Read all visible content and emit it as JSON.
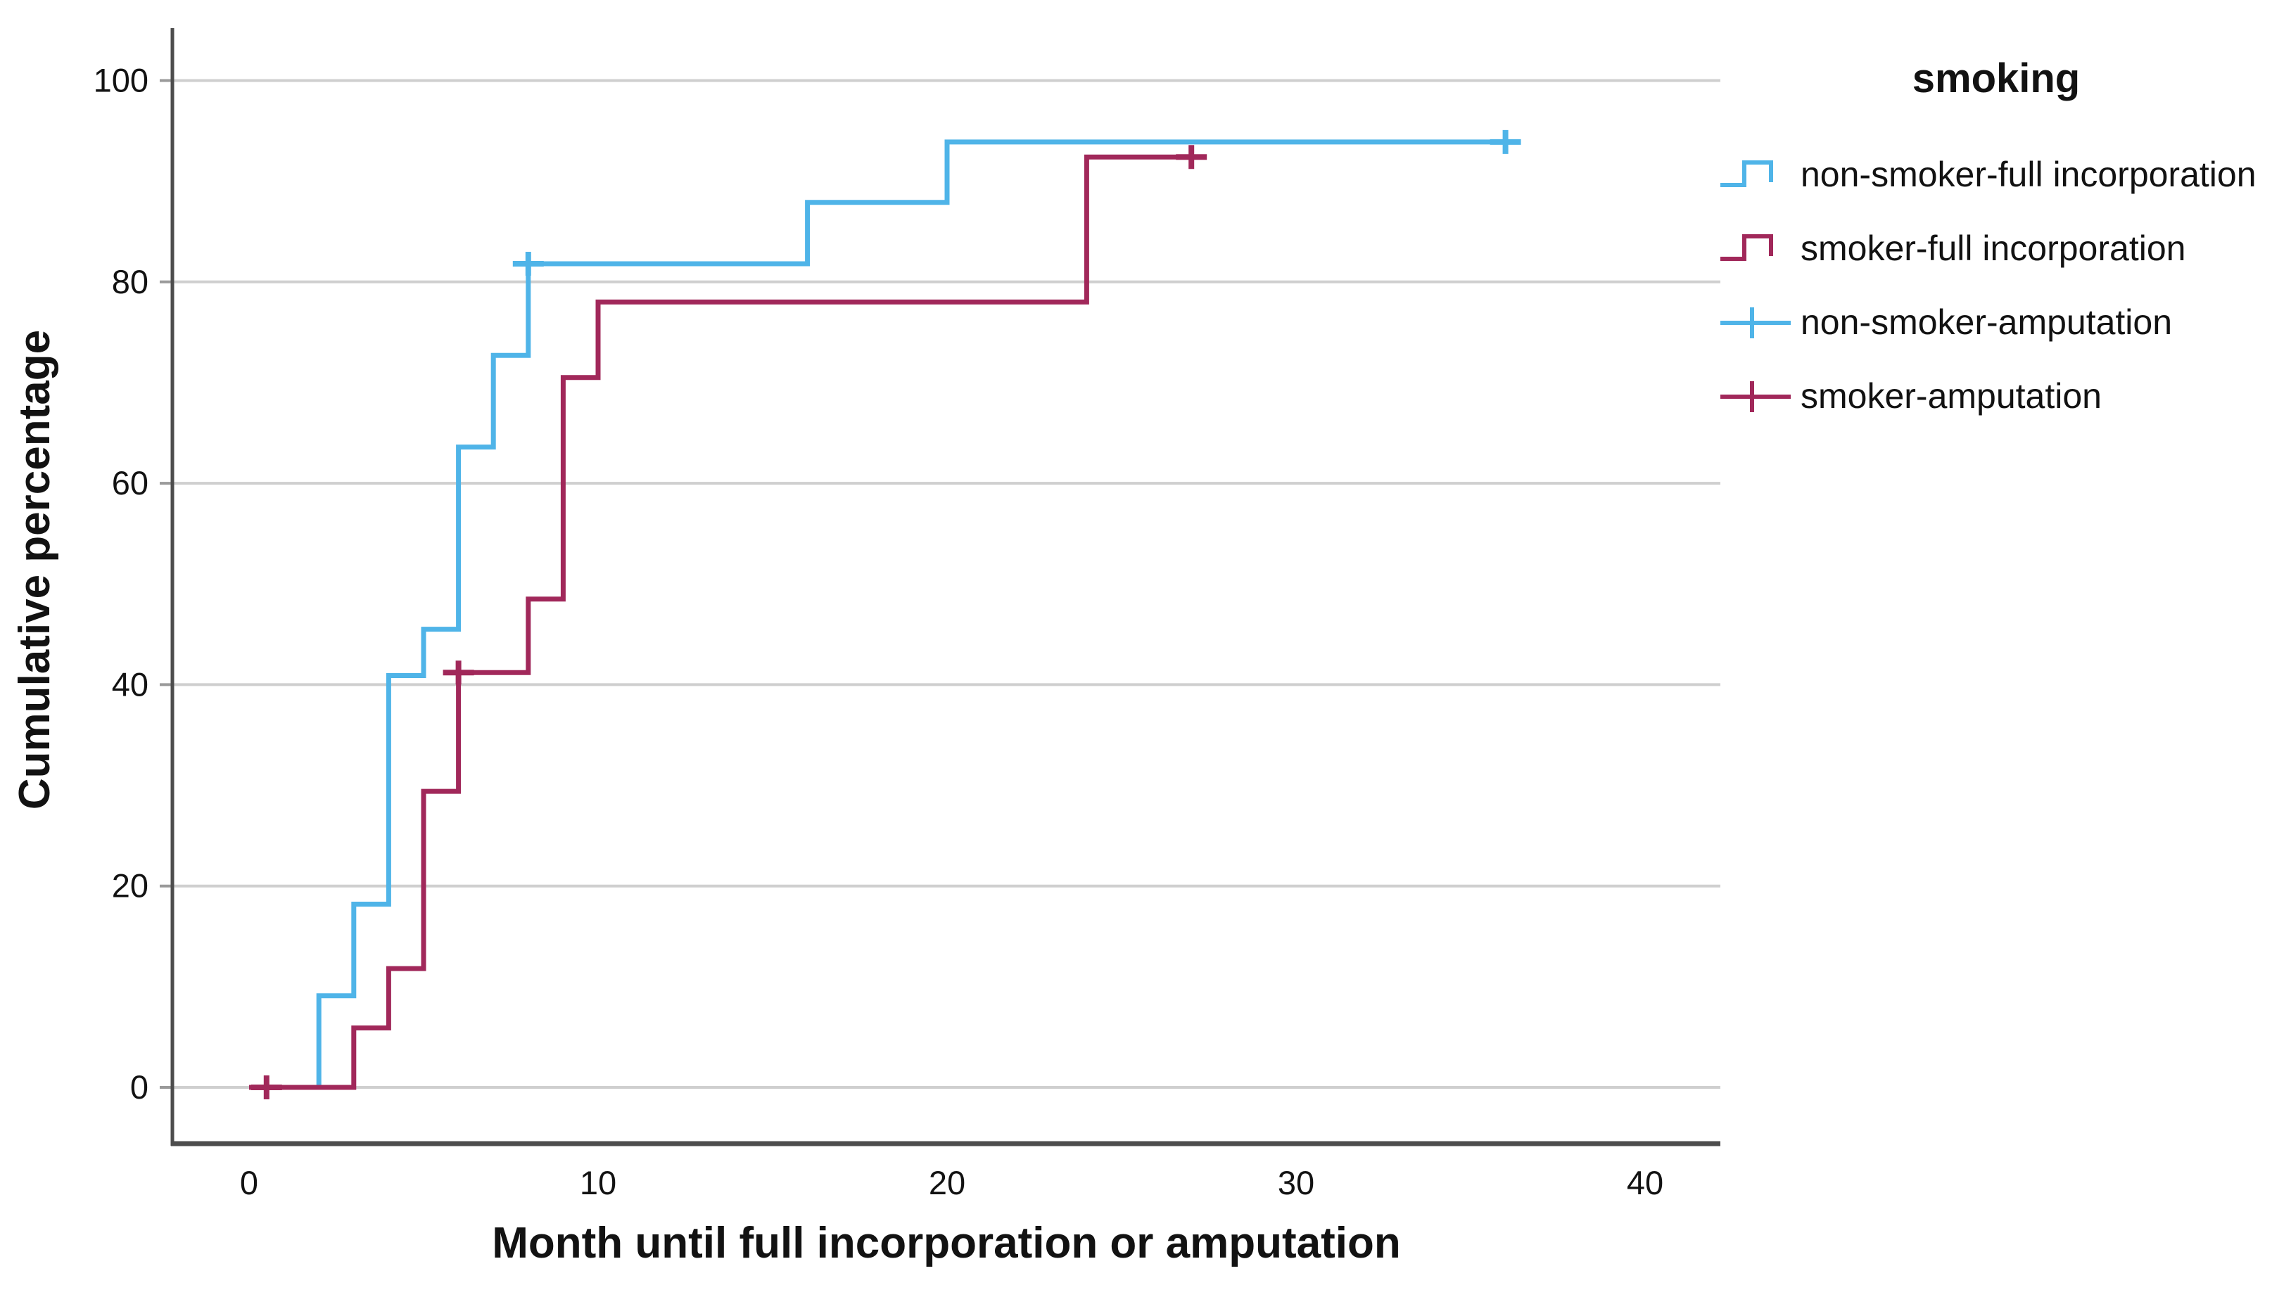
{
  "chart_data": {
    "type": "line",
    "subtype": "step",
    "title": "",
    "xlabel": "Month until full incorporation or amputation",
    "ylabel": "Cumulative percentage",
    "x_ticks": [
      0,
      10,
      20,
      30,
      40
    ],
    "y_ticks": [
      0,
      20,
      40,
      60,
      80,
      100
    ],
    "xlim": [
      -2.2,
      42.2
    ],
    "ylim": [
      -5.6,
      105.2
    ],
    "grid": "horizontal",
    "legend_position": "right",
    "legend_title": "smoking",
    "series": [
      {
        "name": "non-smoker-full incorporation",
        "color": "#4FB4E8",
        "points": [
          [
            0,
            0
          ],
          [
            2,
            9.1
          ],
          [
            3,
            18.2
          ],
          [
            4,
            40.9
          ],
          [
            5,
            45.5
          ],
          [
            6,
            63.6
          ],
          [
            7,
            72.7
          ],
          [
            8,
            81.8
          ],
          [
            16,
            87.9
          ],
          [
            20,
            93.9
          ],
          [
            36,
            93.9
          ]
        ],
        "censor_marks": [
          [
            8,
            81.8
          ],
          [
            36,
            93.9
          ]
        ],
        "censor_name": "non-smoker-amputation"
      },
      {
        "name": "smoker-full incorporation",
        "color": "#A1285A",
        "points": [
          [
            0,
            0
          ],
          [
            3,
            5.9
          ],
          [
            4,
            11.8
          ],
          [
            5,
            29.4
          ],
          [
            6,
            41.2
          ],
          [
            8,
            48.5
          ],
          [
            9,
            70.5
          ],
          [
            10,
            78.0
          ],
          [
            24,
            92.4
          ],
          [
            27,
            92.4
          ]
        ],
        "censor_marks": [
          [
            0.5,
            0
          ],
          [
            6,
            41.2
          ],
          [
            27,
            92.4
          ]
        ],
        "censor_name": "smoker-amputation"
      }
    ]
  },
  "legend": {
    "title": "smoking",
    "items": [
      {
        "label": "non-smoker-full incorporation",
        "glyph": "step",
        "color": "#4FB4E8"
      },
      {
        "label": "smoker-full incorporation",
        "glyph": "step",
        "color": "#A1285A"
      },
      {
        "label": "non-smoker-amputation",
        "glyph": "cross",
        "color": "#4FB4E8"
      },
      {
        "label": "smoker-amputation",
        "glyph": "cross",
        "color": "#A1285A"
      }
    ]
  },
  "colors": {
    "grid": "#CFCFCF",
    "axis": "#4D4D4D",
    "text": "#121212",
    "background": "#FFFFFF"
  }
}
